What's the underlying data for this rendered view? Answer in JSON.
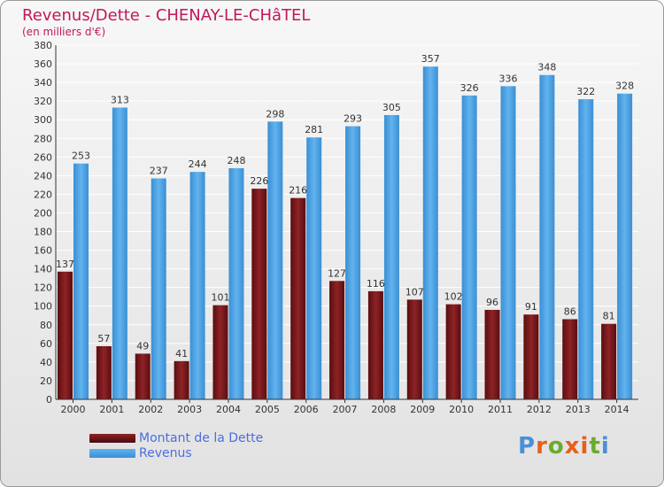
{
  "colors": {
    "title": "#c2185b",
    "debt": "#7a1518",
    "revenue": "#4fa3e3",
    "legend_text": "#4a6ee0"
  },
  "chart_data": {
    "type": "bar",
    "title": "Revenus/Dette - CHENAY-LE-CHâTEL",
    "subtitle": "(en milliers d'€)",
    "categories": [
      "2000",
      "2001",
      "2002",
      "2003",
      "2004",
      "2005",
      "2006",
      "2007",
      "2008",
      "2009",
      "2010",
      "2011",
      "2012",
      "2013",
      "2014"
    ],
    "series": [
      {
        "name": "Montant de la Dette",
        "values": [
          137,
          57,
          49,
          41,
          101,
          226,
          216,
          127,
          116,
          107,
          102,
          96,
          91,
          86,
          81
        ]
      },
      {
        "name": "Revenus",
        "values": [
          253,
          313,
          237,
          244,
          248,
          298,
          281,
          293,
          305,
          357,
          326,
          336,
          348,
          322,
          328
        ]
      }
    ],
    "ylim": [
      0,
      380
    ],
    "ytick_step": 20,
    "grid": true,
    "legend_position": "bottom-left"
  },
  "logo": {
    "text": "Proxiti",
    "letter_colors": [
      "#4a8fd9",
      "#e8601c",
      "#6aab2e",
      "#e8601c",
      "#e8601c",
      "#6aab2e",
      "#4a8fd9"
    ]
  }
}
